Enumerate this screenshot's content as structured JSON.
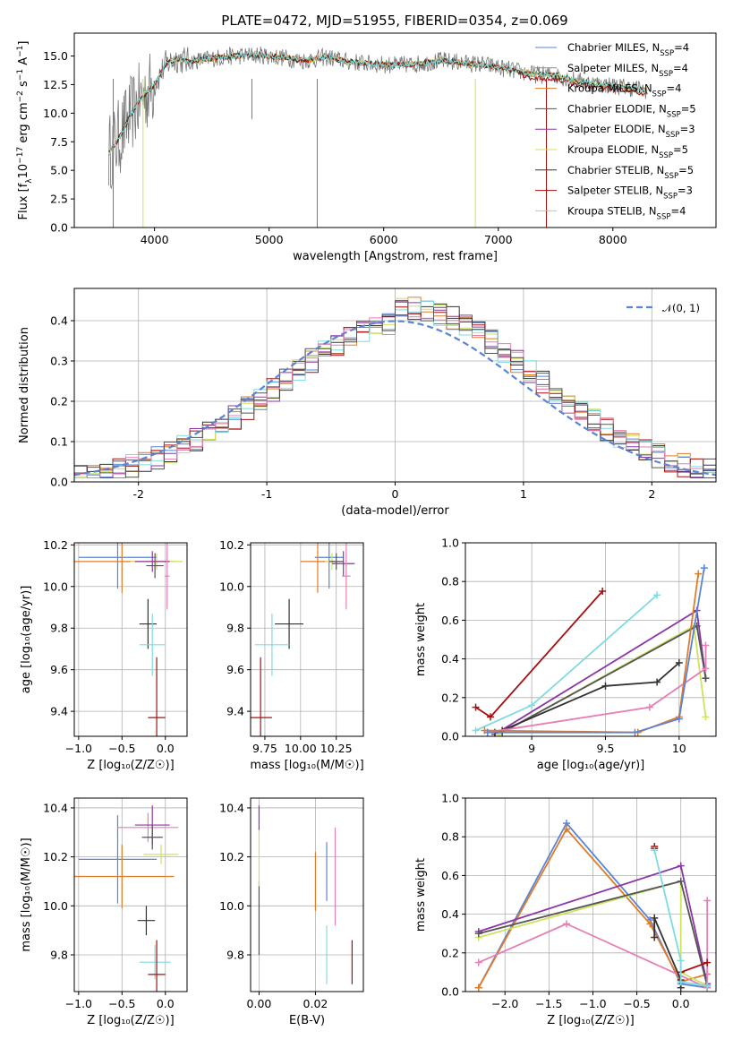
{
  "figure": {
    "title": "PLATE=0472, MJD=51955, FIBERID=0354, z=0.069"
  },
  "colors": {
    "Chabrier MILES": "#5b84d6",
    "Salpeter MILES": "#8c8c8c",
    "Kroupa MILES": "#e07b28",
    "Chabrier ELODIE": "#555555",
    "Salpeter ELODIE": "#8e35a8",
    "Kroupa ELODIE": "#cde35c",
    "Chabrier STELIB": "#333333",
    "Salpeter STELIB": "#a51111",
    "Kroupa STELIB": "#7fdbe0",
    "pink": "#e57fb6",
    "normal": "#5b84d6"
  },
  "chart_data": [
    {
      "id": "spectrum",
      "type": "line",
      "xlabel": "wavelength [Angstrom, rest frame]",
      "ylabel_main": "Flux [f",
      "ylabel_lam": "λ",
      "ylabel_mid": "10",
      "ylabel_exp": "−17",
      "ylabel_rest": " erg cm",
      "ylabel_exp2": "−2",
      "ylabel_rest2": " s",
      "ylabel_exp3": "−1",
      "ylabel_rest3": " A",
      "ylabel_exp4": "−1",
      "ylabel_end": "]",
      "xlim": [
        3300,
        8900
      ],
      "ylim": [
        0,
        17
      ],
      "xticks": [
        4000,
        5000,
        6000,
        7000,
        8000
      ],
      "yticks": [
        0.0,
        2.5,
        5.0,
        7.5,
        10.0,
        12.5,
        15.0
      ],
      "legend_position": "top-right",
      "legend": [
        {
          "name": "Chabrier MILES, N",
          "sub": "SSP",
          "suffix": "=4"
        },
        {
          "name": "Salpeter MILES, N",
          "sub": "SSP",
          "suffix": "=4"
        },
        {
          "name": "Kroupa MILES, N",
          "sub": "SSP",
          "suffix": "=4"
        },
        {
          "name": "Chabrier ELODIE, N",
          "sub": "SSP",
          "suffix": "=5"
        },
        {
          "name": "Salpeter ELODIE, N",
          "sub": "SSP",
          "suffix": "=3"
        },
        {
          "name": "Kroupa ELODIE, N",
          "sub": "SSP",
          "suffix": "=5"
        },
        {
          "name": "Chabrier STELIB, N",
          "sub": "SSP",
          "suffix": "=5"
        },
        {
          "name": "Salpeter STELIB, N",
          "sub": "SSP",
          "suffix": "=3"
        },
        {
          "name": "Kroupa STELIB, N",
          "sub": "SSP",
          "suffix": "=4"
        }
      ],
      "data_envelope": {
        "x": [
          3600,
          3700,
          3800,
          3900,
          4000,
          4100,
          4200,
          4300,
          4500,
          4700,
          4900,
          5100,
          5300,
          5500,
          5700,
          5900,
          6100,
          6300,
          6500,
          6700,
          6900,
          7100,
          7300,
          7500,
          7700,
          7900,
          8100,
          8300
        ],
        "y": [
          6.5,
          8.0,
          10.0,
          11.5,
          12.5,
          14.3,
          14.8,
          14.5,
          14.8,
          15.0,
          15.1,
          14.9,
          14.6,
          14.9,
          14.5,
          14.3,
          14.2,
          14.3,
          14.6,
          14.4,
          14.2,
          13.8,
          13.4,
          13.3,
          12.8,
          12.5,
          12.3,
          12.0
        ]
      },
      "dips": [
        {
          "x": 3640,
          "y": 0.0
        },
        {
          "x": 3900,
          "y": 0.0
        },
        {
          "x": 4850,
          "y": 9.5
        },
        {
          "x": 5420,
          "y": 0.0
        },
        {
          "x": 6800,
          "y": 0.0
        },
        {
          "x": 7420,
          "y": 0.0
        }
      ]
    },
    {
      "id": "residuals",
      "type": "step",
      "xlabel": "(data-model)/error",
      "ylabel": "Normed distribution",
      "xlim": [
        -2.5,
        2.5
      ],
      "ylim": [
        0,
        0.48
      ],
      "xticks": [
        -2,
        -1,
        0,
        1,
        2
      ],
      "yticks": [
        0.0,
        0.1,
        0.2,
        0.3,
        0.4
      ],
      "legend_position": "top-right",
      "legend_label": "𝒩(0, 1)"
    },
    {
      "id": "age_vs_Z",
      "type": "errorbar",
      "xlabel": "Z [log₁₀(Z/Z☉)]",
      "ylabel": "age  [log₁₀(age/yr)]",
      "xlim": [
        -1.05,
        0.25
      ],
      "ylim": [
        9.28,
        10.21
      ],
      "xticks": [
        -1.0,
        -0.5,
        0.0
      ],
      "xticklabels": [
        "−1.0",
        "−0.5",
        "0.0"
      ],
      "yticks": [
        9.4,
        9.6,
        9.8,
        10.0,
        10.2
      ],
      "points": [
        {
          "c": "#5b84d6",
          "x": -0.55,
          "xerr": 0.45,
          "y": 10.14,
          "yerr": 0.15
        },
        {
          "c": "#e07b28",
          "x": -0.5,
          "xerr": 0.6,
          "y": 10.12,
          "yerr": 0.15
        },
        {
          "c": "#cde35c",
          "x": -0.1,
          "xerr": 0.3,
          "y": 10.12,
          "yerr": 0.04
        },
        {
          "c": "#8e35a8",
          "x": -0.15,
          "xerr": 0.2,
          "y": 10.12,
          "yerr": 0.05
        },
        {
          "c": "#e57fb6",
          "x": 0.02,
          "xerr": 0.03,
          "y": 10.05,
          "yerr": 0.16
        },
        {
          "c": "#555555",
          "x": -0.12,
          "xerr": 0.1,
          "y": 10.1,
          "yerr": 0.06
        },
        {
          "c": "#333333",
          "x": -0.2,
          "xerr": 0.1,
          "y": 9.82,
          "yerr": 0.12
        },
        {
          "c": "#7fdbe0",
          "x": -0.15,
          "xerr": 0.15,
          "y": 9.72,
          "yerr": 0.15
        },
        {
          "c": "#a51111",
          "x": -0.1,
          "xerr": 0.1,
          "y": 9.37,
          "yerr": 0.29
        }
      ]
    },
    {
      "id": "age_vs_mass",
      "type": "errorbar",
      "xlabel": "mass [log₁₀(M/M☉)]",
      "xlim": [
        9.65,
        10.44
      ],
      "ylim": [
        9.28,
        10.21
      ],
      "xticks": [
        9.75,
        10.0,
        10.25
      ],
      "xticklabels": [
        "9.75",
        "10.00",
        "10.25"
      ],
      "yticks": [
        9.4,
        9.6,
        9.8,
        10.0,
        10.2
      ],
      "points": [
        {
          "c": "#5b84d6",
          "x": 10.2,
          "xerr": 0.1,
          "y": 10.14,
          "yerr": 0.15
        },
        {
          "c": "#e07b28",
          "x": 10.12,
          "xerr": 0.12,
          "y": 10.12,
          "yerr": 0.15
        },
        {
          "c": "#cde35c",
          "x": 10.22,
          "xerr": 0.05,
          "y": 10.12,
          "yerr": 0.04
        },
        {
          "c": "#8e35a8",
          "x": 10.3,
          "xerr": 0.08,
          "y": 10.11,
          "yerr": 0.06
        },
        {
          "c": "#e57fb6",
          "x": 10.32,
          "xerr": 0.03,
          "y": 10.05,
          "yerr": 0.16
        },
        {
          "c": "#555555",
          "x": 10.25,
          "xerr": 0.05,
          "y": 10.12,
          "yerr": 0.04
        },
        {
          "c": "#333333",
          "x": 9.92,
          "xerr": 0.1,
          "y": 9.82,
          "yerr": 0.12
        },
        {
          "c": "#7fdbe0",
          "x": 9.8,
          "xerr": 0.12,
          "y": 9.72,
          "yerr": 0.15
        },
        {
          "c": "#a51111",
          "x": 9.72,
          "xerr": 0.08,
          "y": 9.37,
          "yerr": 0.29
        }
      ]
    },
    {
      "id": "mw_vs_age",
      "type": "line",
      "xlabel": "age  [log₁₀(age/yr)]",
      "ylabel": "mass weight",
      "xlim": [
        8.55,
        10.25
      ],
      "ylim": [
        0,
        1.0
      ],
      "xticks": [
        9.0,
        9.5,
        10.0
      ],
      "yticks": [
        0.0,
        0.2,
        0.4,
        0.6,
        0.8,
        1.0
      ],
      "series": [
        {
          "c": "#a51111",
          "x": [
            8.62,
            8.72,
            9.48
          ],
          "y": [
            0.15,
            0.1,
            0.75
          ]
        },
        {
          "c": "#7fdbe0",
          "x": [
            8.62,
            9.0,
            9.85
          ],
          "y": [
            0.03,
            0.16,
            0.73
          ]
        },
        {
          "c": "#8e35a8",
          "x": [
            8.75,
            10.12,
            10.18
          ],
          "y": [
            0.01,
            0.65,
            0.3
          ]
        },
        {
          "c": "#cde35c",
          "x": [
            8.78,
            10.1,
            10.18
          ],
          "y": [
            0.01,
            0.57,
            0.1
          ]
        },
        {
          "c": "#555555",
          "x": [
            8.8,
            10.12,
            10.18
          ],
          "y": [
            0.02,
            0.57,
            0.3
          ]
        },
        {
          "c": "#333333",
          "x": [
            8.75,
            8.8,
            9.5,
            9.85,
            10.0
          ],
          "y": [
            0.02,
            0.03,
            0.26,
            0.28,
            0.38
          ]
        },
        {
          "c": "#e57fb6",
          "x": [
            8.7,
            9.8,
            10.18,
            10.18
          ],
          "y": [
            0.02,
            0.15,
            0.35,
            0.47
          ]
        },
        {
          "c": "#e07b28",
          "x": [
            8.68,
            9.72,
            10.0,
            10.13
          ],
          "y": [
            0.03,
            0.02,
            0.1,
            0.84
          ]
        },
        {
          "c": "#5b84d6",
          "x": [
            8.7,
            9.7,
            10.0,
            10.17
          ],
          "y": [
            0.02,
            0.02,
            0.09,
            0.87
          ]
        }
      ]
    },
    {
      "id": "mass_vs_Z",
      "type": "errorbar",
      "xlabel": "Z [log₁₀(Z/Z☉)]",
      "ylabel": "mass [log₁₀(M/M☉)]",
      "xlim": [
        -1.05,
        0.25
      ],
      "ylim": [
        9.65,
        10.44
      ],
      "xticks": [
        -1.0,
        -0.5,
        0.0
      ],
      "xticklabels": [
        "−1.0",
        "−0.5",
        "0.0"
      ],
      "yticks": [
        9.8,
        10.0,
        10.2,
        10.4
      ],
      "points": [
        {
          "c": "#5b84d6",
          "x": -0.55,
          "xerr": 0.45,
          "y": 10.19,
          "yerr": 0.18
        },
        {
          "c": "#e07b28",
          "x": -0.5,
          "xerr": 0.6,
          "y": 10.12,
          "yerr": 0.13
        },
        {
          "c": "#e57fb6",
          "x": -0.2,
          "xerr": 0.35,
          "y": 10.32,
          "yerr": 0.06
        },
        {
          "c": "#8e35a8",
          "x": -0.15,
          "xerr": 0.2,
          "y": 10.33,
          "yerr": 0.08
        },
        {
          "c": "#cde35c",
          "x": -0.05,
          "xerr": 0.2,
          "y": 10.21,
          "yerr": 0.04
        },
        {
          "c": "#555555",
          "x": -0.15,
          "xerr": 0.12,
          "y": 10.28,
          "yerr": 0.05
        },
        {
          "c": "#333333",
          "x": -0.22,
          "xerr": 0.1,
          "y": 9.94,
          "yerr": 0.06
        },
        {
          "c": "#7fdbe0",
          "x": -0.12,
          "xerr": 0.18,
          "y": 9.77,
          "yerr": 0.07
        },
        {
          "c": "#a51111",
          "x": -0.1,
          "xerr": 0.1,
          "y": 9.72,
          "yerr": 0.14
        }
      ]
    },
    {
      "id": "mass_vs_EBV",
      "type": "errorbar",
      "xlabel": "E(B-V)",
      "xlim": [
        -0.003,
        0.037
      ],
      "ylim": [
        9.65,
        10.44
      ],
      "xticks": [
        0.0,
        0.02
      ],
      "xticklabels": [
        "0.00",
        "0.02"
      ],
      "yticks": [
        9.8,
        10.0,
        10.2,
        10.4
      ],
      "points": [
        {
          "c": "#555555",
          "x": 0.0,
          "xerr": 0,
          "y": 9.95,
          "yerr": 0.15
        },
        {
          "c": "#cde35c",
          "x": 0.0,
          "xerr": 0,
          "y": 10.2,
          "yerr": 0.12
        },
        {
          "c": "#8e35a8",
          "x": 0.0,
          "xerr": 0,
          "y": 10.36,
          "yerr": 0.05
        },
        {
          "c": "#e07b28",
          "x": 0.02,
          "xerr": 0,
          "y": 10.1,
          "yerr": 0.12
        },
        {
          "c": "#5b84d6",
          "x": 0.024,
          "xerr": 0,
          "y": 10.14,
          "yerr": 0.12
        },
        {
          "c": "#7fdbe0",
          "x": 0.024,
          "xerr": 0,
          "y": 9.8,
          "yerr": 0.12
        },
        {
          "c": "#e57fb6",
          "x": 0.027,
          "xerr": 0,
          "y": 10.12,
          "yerr": 0.2
        },
        {
          "c": "#a51111",
          "x": 0.033,
          "xerr": 0,
          "y": 9.77,
          "yerr": 0.09
        }
      ]
    },
    {
      "id": "mw_vs_Z",
      "type": "line",
      "xlabel": "Z [log₁₀(Z/Z☉)]",
      "ylabel": "mass weight",
      "xlim": [
        -2.45,
        0.4
      ],
      "ylim": [
        0,
        1.0
      ],
      "xticks": [
        -2.0,
        -1.5,
        -1.0,
        -0.5,
        0.0
      ],
      "xticklabels": [
        "−2.0",
        "−1.5",
        "−1.0",
        "−0.5",
        "0.0"
      ],
      "yticks": [
        0.0,
        0.2,
        0.4,
        0.6,
        0.8,
        1.0
      ],
      "series": [
        {
          "c": "#5b84d6",
          "x": [
            -2.3,
            -1.3,
            -0.35,
            0.0,
            0.3
          ],
          "y": [
            0.02,
            0.87,
            0.37,
            0.04,
            0.02
          ]
        },
        {
          "c": "#e07b28",
          "x": [
            -2.3,
            -1.3,
            -0.35,
            0.0,
            0.3
          ],
          "y": [
            0.02,
            0.84,
            0.35,
            0.05,
            0.09
          ]
        },
        {
          "c": "#8e35a8",
          "x": [
            -2.3,
            0.0,
            0.3
          ],
          "y": [
            0.31,
            0.65,
            0.04
          ]
        },
        {
          "c": "#cde35c",
          "x": [
            -2.3,
            0.0,
            0.0,
            0.3
          ],
          "y": [
            0.28,
            0.57,
            0.1,
            0.03
          ]
        },
        {
          "c": "#555555",
          "x": [
            -2.3,
            0.0,
            0.3
          ],
          "y": [
            0.3,
            0.57,
            0.03
          ]
        },
        {
          "c": "#e57fb6",
          "x": [
            -2.3,
            -1.3,
            0.3,
            0.3
          ],
          "y": [
            0.15,
            0.35,
            0.02,
            0.47
          ]
        },
        {
          "c": "#333333",
          "x": [
            -0.3,
            -0.3,
            0.0,
            0.0
          ],
          "y": [
            0.28,
            0.38,
            0.06,
            0.02
          ]
        },
        {
          "c": "#a51111",
          "x": [
            -0.3,
            -0.3
          ],
          "y": [
            0.75,
            0.74
          ],
          "extra": {
            "x": [
              0.0,
              0.3
            ],
            "y": [
              0.1,
              0.15
            ]
          }
        },
        {
          "c": "#7fdbe0",
          "x": [
            -0.3,
            0.0,
            0.0,
            0.3
          ],
          "y": [
            0.73,
            0.16,
            0.05,
            0.03
          ]
        }
      ]
    }
  ]
}
